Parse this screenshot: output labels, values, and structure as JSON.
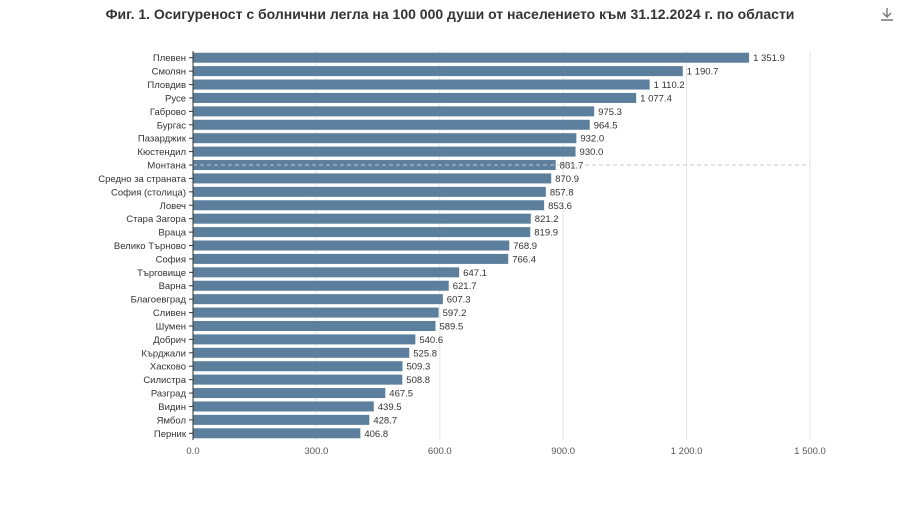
{
  "title": "Фиг. 1. Осигуреност с болнични легла на 100 000 души от населението към 31.12.2024 г. по области",
  "download_icon": "download-icon",
  "colors": {
    "bar": "#5b7f9c",
    "grid": "#e6e6e6",
    "axis": "#333333",
    "dashed": "#c8c8c8"
  },
  "chart_data": {
    "type": "bar",
    "orientation": "horizontal",
    "categories": [
      "Плевен",
      "Смолян",
      "Пловдив",
      "Русе",
      "Габрово",
      "Бургас",
      "Пазарджик",
      "Кюстендил",
      "Монтана",
      "Средно за страната",
      "София (столица)",
      "Ловеч",
      "Стара Загора",
      "Враца",
      "Велико Търново",
      "София",
      "Търговище",
      "Варна",
      "Благоевград",
      "Сливен",
      "Шумен",
      "Добрич",
      "Кърджали",
      "Хасково",
      "Силистра",
      "Разград",
      "Видин",
      "Ямбол",
      "Перник"
    ],
    "values": [
      1351.9,
      1190.7,
      1110.2,
      1077.4,
      975.3,
      964.5,
      932.0,
      930.0,
      881.7,
      870.9,
      857.8,
      853.6,
      821.2,
      819.9,
      768.9,
      766.4,
      647.1,
      621.7,
      607.3,
      597.2,
      589.5,
      540.6,
      525.8,
      509.3,
      508.8,
      467.5,
      439.5,
      428.7,
      406.8
    ],
    "value_labels": [
      "1 351.9",
      "1 190.7",
      "1 110.2",
      "1 077.4",
      "975.3",
      "964.5",
      "932.0",
      "930.0",
      "881.7",
      "870.9",
      "857.8",
      "853.6",
      "821.2",
      "819.9",
      "768.9",
      "766.4",
      "647.1",
      "621.7",
      "607.3",
      "597.2",
      "589.5",
      "540.6",
      "525.8",
      "509.3",
      "508.8",
      "467.5",
      "439.5",
      "428.7",
      "406.8"
    ],
    "x_ticks": [
      "0.0",
      "300.0",
      "600.0",
      "900.0",
      "1 200.0",
      "1 500.0"
    ],
    "x_tick_values": [
      0,
      300,
      600,
      900,
      1200,
      1500
    ],
    "xlim": [
      0,
      1500
    ],
    "grid": true,
    "reference_line_category": "Монтана"
  }
}
